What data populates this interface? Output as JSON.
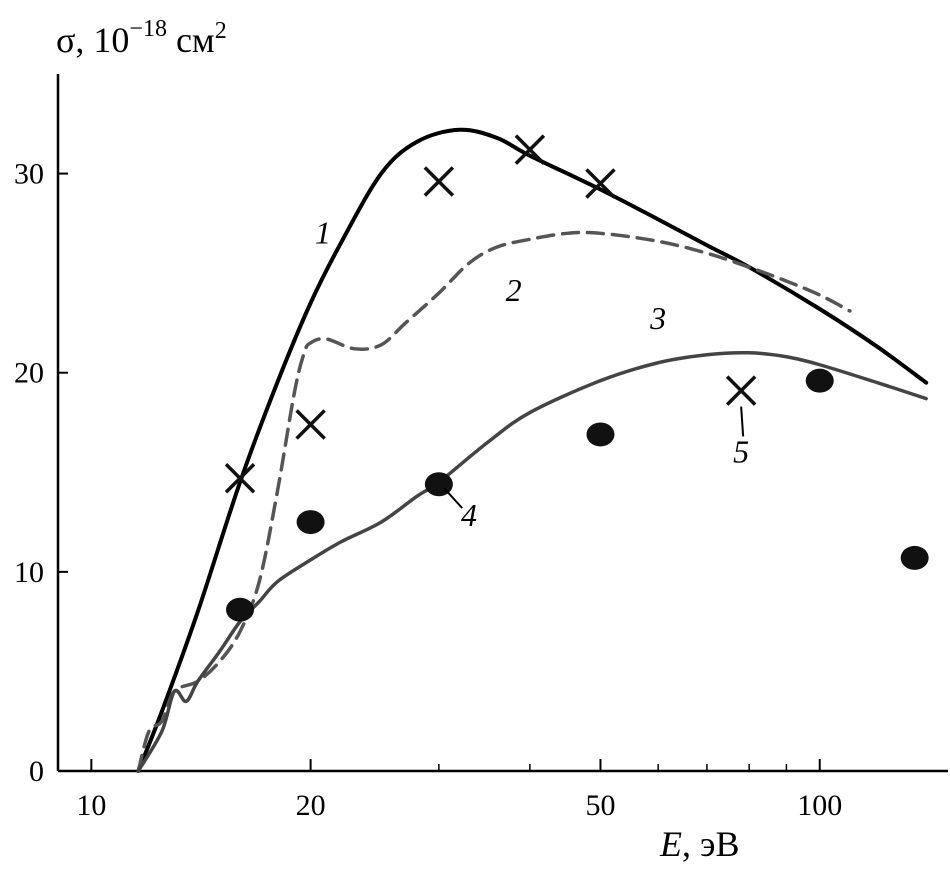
{
  "chart_data": {
    "type": "line",
    "title": "",
    "ylabel_prefix": "σ, 10",
    "ylabel_exp": "−18",
    "ylabel_unit": " см",
    "ylabel_unit_exp": "2",
    "xlabel_var": "E",
    "xlabel_unit": ", эВ",
    "xscale": "log",
    "xlim": [
      9,
      150
    ],
    "ylim": [
      0,
      35
    ],
    "grid": false,
    "x_ticks": [
      10,
      20,
      50,
      100
    ],
    "x_tick_labels": [
      "10",
      "20",
      "50",
      "100"
    ],
    "y_ticks": [
      0,
      10,
      20,
      30
    ],
    "y_tick_labels": [
      "0",
      "10",
      "20",
      "30"
    ],
    "series": [
      {
        "label": "1",
        "style": "solid",
        "color": "#000000",
        "x": [
          11.6,
          12.5,
          14,
          16,
          18,
          20,
          22,
          25,
          28,
          32,
          36,
          40,
          50,
          60,
          70,
          80,
          100,
          120,
          140
        ],
        "y": [
          0,
          3,
          8,
          14.5,
          19.5,
          23.5,
          26.5,
          30,
          31.6,
          32.2,
          31.8,
          30.9,
          29.2,
          27.7,
          26.4,
          25.3,
          23.2,
          21.3,
          19.5
        ]
      },
      {
        "label": "2",
        "style": "dashed",
        "color": "#555555",
        "x": [
          11.6,
          12,
          12.5,
          13,
          14,
          15,
          16,
          17,
          18,
          19,
          19.6,
          20,
          21,
          23,
          25,
          27,
          30,
          33,
          36,
          40,
          45,
          50,
          60,
          70,
          80,
          90,
          100,
          110
        ],
        "y": [
          0,
          2,
          2.5,
          4,
          4.5,
          5.5,
          7,
          9.5,
          14,
          19,
          21,
          21.5,
          21.7,
          21.2,
          21.4,
          22.5,
          24,
          25.5,
          26.3,
          26.7,
          27,
          27,
          26.6,
          26,
          25.3,
          24.6,
          23.9,
          23.1
        ]
      },
      {
        "label": "3",
        "style": "solid",
        "color": "#444444",
        "x": [
          11.6,
          12.5,
          13,
          13.5,
          14,
          15,
          16,
          17,
          18,
          20,
          22,
          25,
          28,
          30,
          35,
          40,
          50,
          60,
          70,
          80,
          90,
          100,
          120,
          140
        ],
        "y": [
          0,
          2,
          4,
          3.5,
          4.5,
          6,
          7.5,
          8.5,
          9.5,
          10.6,
          11.5,
          12.5,
          13.8,
          14.5,
          16.5,
          18,
          19.6,
          20.5,
          20.9,
          21,
          20.8,
          20.4,
          19.5,
          18.7
        ]
      }
    ],
    "points": [
      {
        "label": "4",
        "marker": "circle",
        "x": [
          16,
          20,
          30,
          50,
          100,
          135
        ],
        "y": [
          8.1,
          12.5,
          14.4,
          16.9,
          19.6,
          10.7
        ]
      },
      {
        "label": "5",
        "marker": "cross",
        "x": [
          16,
          20,
          30,
          40,
          50,
          78
        ],
        "y": [
          14.7,
          17.4,
          29.6,
          31.2,
          29.5,
          19.1
        ]
      }
    ],
    "annotations": [
      {
        "text": "1",
        "x": 20.8,
        "y": 26.5
      },
      {
        "text": "2",
        "x": 38,
        "y": 23.6
      },
      {
        "text": "3",
        "x": 60,
        "y": 22.2
      },
      {
        "text": "4",
        "x": 33,
        "y": 12.3
      },
      {
        "text": "5",
        "x": 78,
        "y": 15.5
      }
    ]
  }
}
